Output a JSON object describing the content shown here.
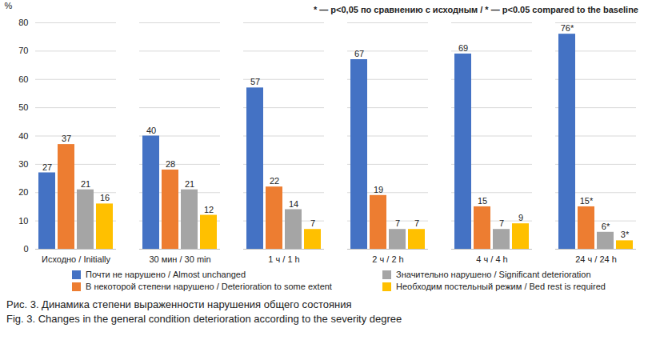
{
  "chart_data": {
    "type": "bar",
    "title": "Рис. 3. Динамика степени выраженности нарушения общего состояния",
    "subtitle": "Fig. 3. Changes in the general condition deterioration according to the severity degree",
    "y_label": "%",
    "annotation": "* — p<0,05 по сравнению с исходным / * — p<0.05 compared to the baseline",
    "categories": [
      "Исходно / Initially",
      "30 мин / 30 min",
      "1 ч / 1 h",
      "2 ч / 2 h",
      "4 ч / 4 h",
      "24 ч / 24 h"
    ],
    "series": [
      {
        "name": "Почти не нарушено / Almost unchanged",
        "color": "#4472c4",
        "values": [
          27,
          40,
          57,
          67,
          69,
          76
        ],
        "value_labels": [
          "27",
          "40",
          "57",
          "67",
          "69",
          "76*"
        ]
      },
      {
        "name": "В некоторой степени нарушено / Deterioration to some extent",
        "color": "#ed7d31",
        "values": [
          37,
          28,
          22,
          19,
          15,
          15
        ],
        "value_labels": [
          "37",
          "28",
          "22",
          "19",
          "15",
          "15*"
        ]
      },
      {
        "name": "Значительно нарушено / Significant deterioration",
        "color": "#a5a5a5",
        "values": [
          21,
          21,
          14,
          7,
          7,
          6
        ],
        "value_labels": [
          "21",
          "21",
          "14",
          "7",
          "7",
          "6*"
        ]
      },
      {
        "name": "Необходим постельный режим / Bed rest is required",
        "color": "#ffc000",
        "values": [
          16,
          12,
          7,
          7,
          9,
          3
        ],
        "value_labels": [
          "16",
          "12",
          "7",
          "7",
          "9",
          "3*"
        ]
      }
    ],
    "ylim": [
      0,
      80
    ],
    "yticks": [
      0,
      10,
      20,
      30,
      40,
      50,
      60,
      70,
      80
    ],
    "grid": true,
    "data_labels": true,
    "legend": "bottom"
  }
}
